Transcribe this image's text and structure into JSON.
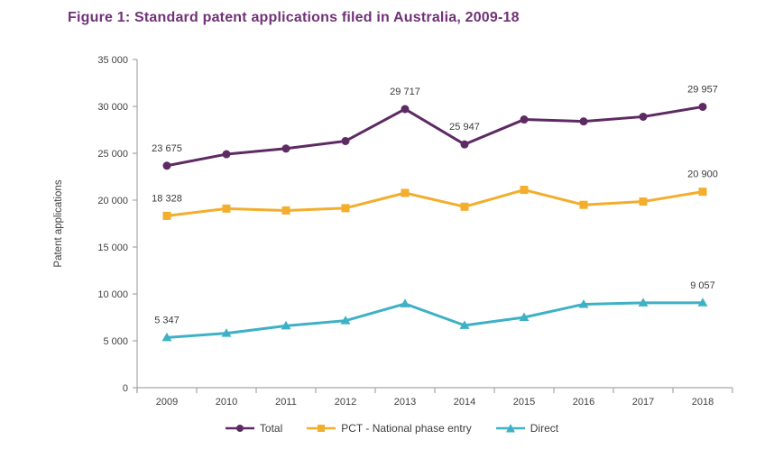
{
  "figure": {
    "title": "Figure 1: Standard patent applications filed in Australia, 2009-18",
    "title_color": "#703277"
  },
  "chart_data": {
    "type": "line",
    "title": "Figure 1: Standard patent applications filed in Australia, 2009-18",
    "xlabel": "",
    "ylabel": "Patent applications",
    "ylim": [
      0,
      35000
    ],
    "ytick_interval": 5000,
    "ytick_labels": [
      "0",
      "5 000",
      "10 000",
      "15 000",
      "20 000",
      "25 000",
      "30 000",
      "35 000"
    ],
    "grid": false,
    "legend_position": "bottom",
    "axis_color": "#a6a6a6",
    "categories": [
      "2009",
      "2010",
      "2011",
      "2012",
      "2013",
      "2014",
      "2015",
      "2016",
      "2017",
      "2018"
    ],
    "series": [
      {
        "name": "Total",
        "marker": "circle",
        "color": "#5e2a63",
        "values": [
          23675,
          24900,
          25500,
          26300,
          29717,
          25947,
          28600,
          28400,
          28900,
          29957
        ],
        "point_labels": [
          "23 675",
          null,
          null,
          null,
          "29 717",
          "25 947",
          null,
          null,
          null,
          "29 957"
        ]
      },
      {
        "name": "PCT - National phase entry",
        "marker": "square",
        "color": "#f2ae2c",
        "values": [
          18328,
          19100,
          18900,
          19150,
          20770,
          19300,
          21100,
          19500,
          19850,
          20900
        ],
        "point_labels": [
          "18 328",
          null,
          null,
          null,
          null,
          null,
          null,
          null,
          null,
          "20 900"
        ]
      },
      {
        "name": "Direct",
        "marker": "triangle",
        "color": "#3eb1c5",
        "values": [
          5347,
          5800,
          6600,
          7150,
          8950,
          6650,
          7500,
          8900,
          9050,
          9057
        ],
        "point_labels": [
          "5 347",
          null,
          null,
          null,
          null,
          null,
          null,
          null,
          null,
          "9 057"
        ]
      }
    ]
  }
}
